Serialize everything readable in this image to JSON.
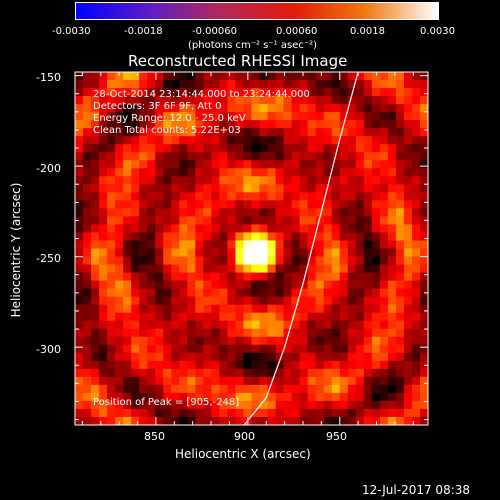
{
  "colorbar": {
    "ticks": [
      "-0.0030",
      "-0.0018",
      "-0.00060",
      "0.00060",
      "0.0018",
      "0.0030"
    ],
    "tick_values": [
      -0.003,
      -0.0018,
      -0.0006,
      0.0006,
      0.0018,
      0.003
    ],
    "range": [
      -0.003,
      0.003
    ],
    "units": "(photons cm⁻² s⁻¹ asec⁻²)",
    "colors": [
      "#0000ff",
      "#5a1cc8",
      "#b2285a",
      "#e31a0a",
      "#f07a10",
      "#ffffff"
    ]
  },
  "header": {
    "title": "Reconstructed RHESSI Image"
  },
  "info": {
    "time_range": "28-Oct-2014 23:14:44.000 to 23:24:44.000",
    "detectors": "Detectors: 3F 6F 9F, Att 0",
    "energy": "Energy Range: 12.0 - 25.0 keV",
    "clean": "Clean    Total counts: 5.22E+03",
    "peak": "Position of Peak = [905,-248]"
  },
  "footer": {
    "timestamp": "12-Jul-2017 08:38"
  },
  "chart_data": {
    "type": "heatmap",
    "title": "Reconstructed RHESSI Image",
    "xlabel": "Heliocentric X (arcsec)",
    "ylabel": "Heliocentric Y (arcsec)",
    "xlim": [
      806,
      998
    ],
    "ylim": [
      -343,
      -148
    ],
    "xticks": [
      850,
      900,
      950
    ],
    "yticks": [
      -150,
      -200,
      -250,
      -300
    ],
    "xtick_labels": [
      "850",
      "900",
      "950"
    ],
    "ytick_labels": [
      "-150",
      "-200",
      "-250",
      "-300"
    ],
    "peak": {
      "x": 905,
      "y": -248
    },
    "limb_curve": [
      [
        960,
        -148
      ],
      [
        950,
        -185
      ],
      [
        940,
        -225
      ],
      [
        930,
        -265
      ],
      [
        920,
        -300
      ],
      [
        910,
        -328
      ],
      [
        898,
        -343
      ]
    ],
    "colormap": "hot"
  }
}
